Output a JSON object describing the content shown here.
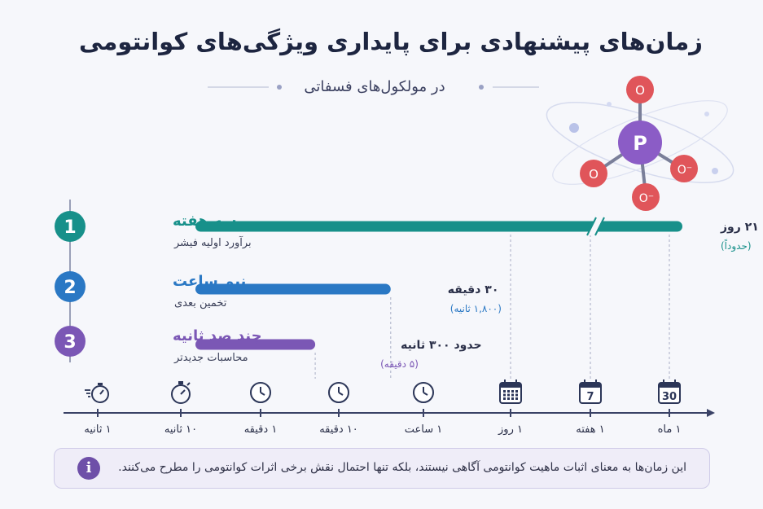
{
  "header": {
    "title": "زمان‌های پیشنهادی برای پایداری ویژگی‌های کوانتومی",
    "subtitle": "در مولکول‌های فسفاتی"
  },
  "molecule": {
    "center_label": "P",
    "top_label": "O",
    "left_label": "O",
    "right_label": "O⁻",
    "bottom_label": "O⁻",
    "colors": {
      "phosphorus": "#8b5cc6",
      "oxygen": "#e0555a"
    }
  },
  "chart_data": {
    "type": "bar",
    "orientation": "horizontal",
    "x_axis_scale": "log",
    "x_ticks": [
      {
        "label": "۱ ثانیه",
        "seconds": 1,
        "icon": "timer-icon"
      },
      {
        "label": "۱۰ ثانیه",
        "seconds": 10,
        "icon": "stopwatch-icon"
      },
      {
        "label": "۱ دقیقه",
        "seconds": 60,
        "icon": "clock-icon"
      },
      {
        "label": "۱۰ دقیقه",
        "seconds": 600,
        "icon": "clock-icon"
      },
      {
        "label": "۱ ساعت",
        "seconds": 3600,
        "icon": "clock-icon"
      },
      {
        "label": "۱ روز",
        "seconds": 86400,
        "icon": "calendar-icon"
      },
      {
        "label": "۱ هفته",
        "seconds": 604800,
        "icon": "calendar-icon",
        "icon_text": "7"
      },
      {
        "label": "۱ ماه",
        "seconds": 2592000,
        "icon": "calendar-icon",
        "icon_text": "30"
      }
    ],
    "series": [
      {
        "index_label": "1",
        "name": "سه هفته",
        "note": "برآورد اولیه فیشر",
        "value_seconds": 1814400,
        "value_label": "۲۱ روز",
        "value_sublabel": "(حدوداً)",
        "axis_break": true,
        "color": "#17908a"
      },
      {
        "index_label": "2",
        "name": "نیم ساعت",
        "note": "تخمین بعدی",
        "value_seconds": 1800,
        "value_label": "۳۰ دقیقه",
        "value_sublabel": "(۱,۸۰۰ ثانیه)",
        "axis_break": false,
        "color": "#2a78c4"
      },
      {
        "index_label": "3",
        "name": "چند صد ثانیه",
        "note": "محاسبات جدیدتر",
        "value_seconds": 300,
        "value_label": "حدود ۳۰۰ ثانیه",
        "value_sublabel": "(۵ دقیقه)",
        "axis_break": false,
        "color": "#7b57b5"
      }
    ]
  },
  "footer": {
    "note": "این زمان‌ها به معنای اثبات ماهیت کوانتومی آگاهی نیستند، بلکه تنها احتمال نقش برخی اثرات کوانتومی را مطرح می‌کنند.",
    "info_glyph": "i"
  }
}
